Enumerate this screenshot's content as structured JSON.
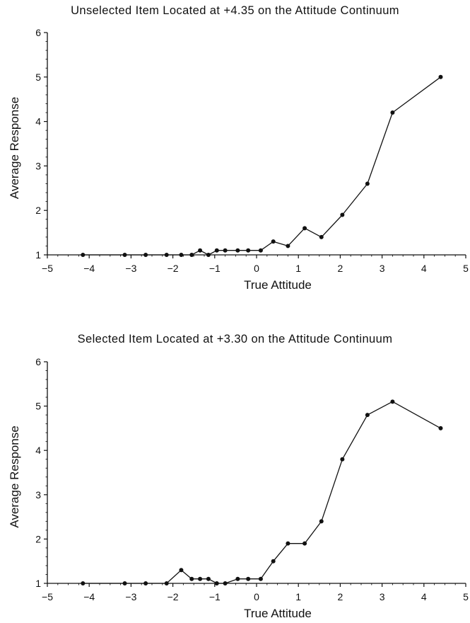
{
  "chart_data": [
    {
      "type": "line",
      "title": "Unselected Item Located at  +4.35  on  the  Attitude  Continuum",
      "xlabel": "True  Attitude",
      "ylabel": "Average  Response",
      "xlim": [
        -5,
        5
      ],
      "ylim": [
        1,
        6
      ],
      "xticks": [
        -5,
        -4,
        -3,
        -2,
        -1,
        0,
        1,
        2,
        3,
        4,
        5
      ],
      "yticks": [
        1,
        2,
        3,
        4,
        5,
        6
      ],
      "xtick_labels": [
        "−5",
        "−4",
        "−3",
        "−2",
        "−1",
        "0",
        "1",
        "2",
        "3",
        "4",
        "5"
      ],
      "ytick_labels": [
        "1",
        "2",
        "3",
        "4",
        "5",
        "6"
      ],
      "grid": false,
      "series": [
        {
          "x": [
            -4.15,
            -3.15,
            -2.65,
            -2.15,
            -1.8,
            -1.55,
            -1.35,
            -1.15,
            -0.95,
            -0.75,
            -0.45,
            -0.2,
            0.1,
            0.4,
            0.75,
            1.15,
            1.55,
            2.05,
            2.65,
            3.25,
            4.4
          ],
          "y": [
            1.0,
            1.0,
            1.0,
            1.0,
            1.0,
            1.0,
            1.1,
            1.0,
            1.1,
            1.1,
            1.1,
            1.1,
            1.1,
            1.3,
            1.2,
            1.6,
            1.4,
            1.9,
            2.6,
            4.2,
            5.0
          ]
        }
      ]
    },
    {
      "type": "line",
      "title": "Selected Item Located at  +3.30  on  the  Attitude  Continuum",
      "xlabel": "True  Attitude",
      "ylabel": "Average  Response",
      "xlim": [
        -5,
        5
      ],
      "ylim": [
        1,
        6
      ],
      "xticks": [
        -5,
        -4,
        -3,
        -2,
        -1,
        0,
        1,
        2,
        3,
        4,
        5
      ],
      "yticks": [
        1,
        2,
        3,
        4,
        5,
        6
      ],
      "xtick_labels": [
        "−5",
        "−4",
        "−3",
        "−2",
        "−1",
        "0",
        "1",
        "2",
        "3",
        "4",
        "5"
      ],
      "ytick_labels": [
        "1",
        "2",
        "3",
        "4",
        "5",
        "6"
      ],
      "grid": false,
      "series": [
        {
          "x": [
            -4.15,
            -3.15,
            -2.65,
            -2.15,
            -1.8,
            -1.55,
            -1.35,
            -1.15,
            -0.95,
            -0.75,
            -0.45,
            -0.2,
            0.1,
            0.4,
            0.75,
            1.15,
            1.55,
            2.05,
            2.65,
            3.25,
            4.4
          ],
          "y": [
            1.0,
            1.0,
            1.0,
            1.0,
            1.3,
            1.1,
            1.1,
            1.1,
            1.0,
            1.0,
            1.1,
            1.1,
            1.1,
            1.5,
            1.9,
            1.9,
            2.4,
            3.8,
            4.8,
            5.1,
            4.5
          ]
        }
      ]
    }
  ]
}
